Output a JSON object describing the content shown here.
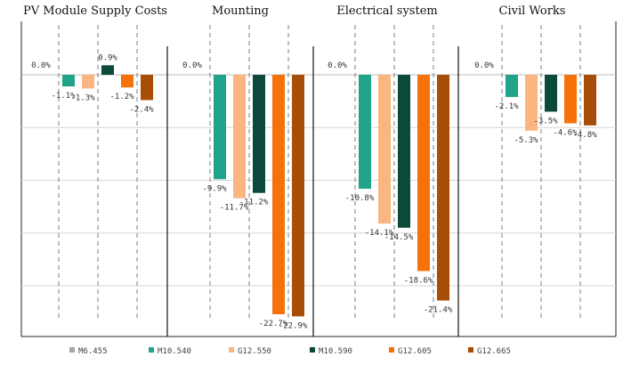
{
  "chart_data": {
    "type": "bar",
    "panels": [
      {
        "title": "PV Module Supply Costs",
        "values": [
          0.0,
          -1.1,
          -1.3,
          0.9,
          -1.2,
          -2.4
        ],
        "labels": [
          "0.0%",
          "-1.1%",
          "-1.3%",
          "0.9%",
          "-1.2%",
          "-2.4%"
        ]
      },
      {
        "title": "Mounting",
        "values": [
          0.0,
          -9.9,
          -11.7,
          -11.2,
          -22.7,
          -22.9
        ],
        "labels": [
          "0.0%",
          "-9.9%",
          "-11.7%",
          "-11.2%",
          "-22.7%",
          "-22.9%"
        ]
      },
      {
        "title": "Electrical system",
        "values": [
          0.0,
          -10.8,
          -14.1,
          -14.5,
          -18.6,
          -21.4
        ],
        "labels": [
          "0.0%",
          "-10.8%",
          "-14.1%",
          "-14.5%",
          "-18.6%",
          "-21.4%"
        ]
      },
      {
        "title": "Civil Works",
        "values": [
          0.0,
          -2.1,
          -5.3,
          -3.5,
          -4.6,
          -4.8
        ],
        "labels": [
          "0.0%",
          "-2.1%",
          "-5.3%",
          "-3.5%",
          "-4.6%",
          "-4.8%"
        ]
      }
    ],
    "series": [
      {
        "name": "M6.455",
        "color": "#a5a5a5"
      },
      {
        "name": "M10.540",
        "color": "#1fa389"
      },
      {
        "name": "G12.550",
        "color": "#fbb580"
      },
      {
        "name": "M10.590",
        "color": "#0b4a3a"
      },
      {
        "name": "G12.605",
        "color": "#f5720b"
      },
      {
        "name": "G12.665",
        "color": "#a84d08"
      }
    ],
    "ylim": [
      -25,
      2.5
    ],
    "grid": true,
    "legend": "bottom"
  }
}
